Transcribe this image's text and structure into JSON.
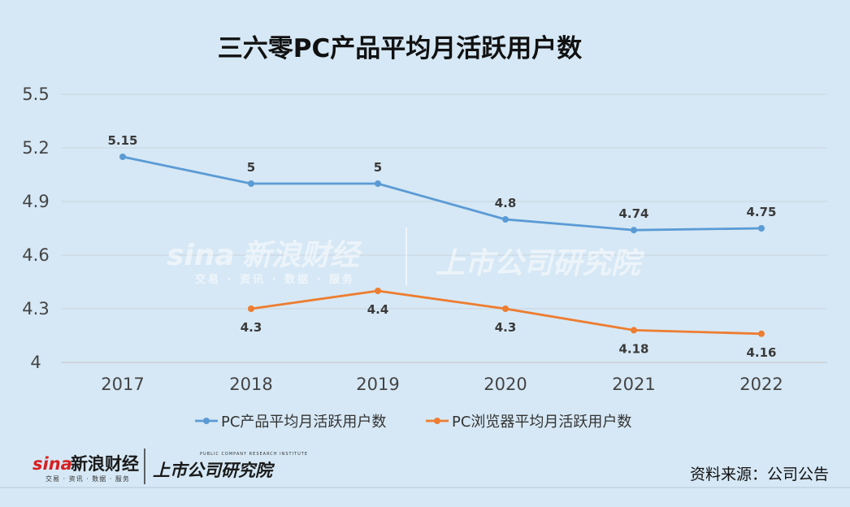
{
  "chart_data": {
    "type": "line",
    "title": "三六零PC产品平均月活跃用户数",
    "categories": [
      "2017",
      "2018",
      "2019",
      "2020",
      "2021",
      "2022"
    ],
    "series": [
      {
        "name": "PC产品平均月活跃用户数",
        "color": "#5b9bd5",
        "values": [
          5.15,
          5,
          5,
          4.8,
          4.74,
          4.75
        ],
        "labels": [
          "5.15",
          "5",
          "5",
          "4.8",
          "4.74",
          "4.75"
        ],
        "label_position": "above"
      },
      {
        "name": "PC浏览器平均月活跃用户数",
        "color": "#ed7d31",
        "values": [
          null,
          4.3,
          4.4,
          4.3,
          4.18,
          4.16
        ],
        "labels": [
          null,
          "4.3",
          "4.4",
          "4.3",
          "4.18",
          "4.16"
        ],
        "label_position": "below"
      }
    ],
    "y_ticks": [
      "4",
      "4.3",
      "4.6",
      "4.9",
      "5.2",
      "5.5"
    ],
    "ylim": [
      4,
      5.5
    ],
    "grid": true,
    "legend_position": "bottom"
  },
  "source_note": "资料来源：公司公告",
  "watermark": {
    "brand_latin": "sina",
    "brand_cn": "新浪财经",
    "brand_sub": "交易 · 资讯 · 数据 · 服务",
    "institute_cn": "上市公司研究院",
    "institute_en": "PUBLIC COMPANY RESEARCH INSTITUTE"
  }
}
